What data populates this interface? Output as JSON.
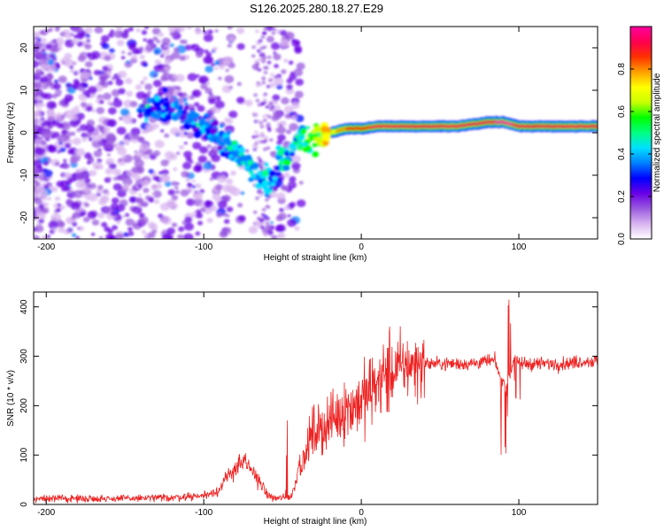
{
  "title": "S126.2025.280.18.27.E29",
  "chart_data": [
    {
      "type": "heatmap",
      "name": "spectrogram",
      "xlabel": "Height of straight line (km)",
      "ylabel": "Frequency (Hz)",
      "xlim": [
        -208,
        150
      ],
      "ylim": [
        -25,
        25
      ],
      "xticks": [
        -200,
        -100,
        0,
        100
      ],
      "yticks": [
        -20,
        -10,
        0,
        10,
        20
      ],
      "colorbar": {
        "label": "Normalized spectral amplitude",
        "range": [
          0,
          1
        ],
        "ticks": [
          "0.0",
          "0.2",
          "0.4",
          "0.6",
          "0.8"
        ],
        "colors": [
          "#ffffff",
          "#d8b4f0",
          "#9a5ae0",
          "#6a00e6",
          "#0000ff",
          "#0080ff",
          "#00e0ff",
          "#00ff80",
          "#00ff00",
          "#c8ff00",
          "#ffff00",
          "#ffa000",
          "#ff3000",
          "#ff0050",
          "#ff00a0"
        ]
      },
      "ridge": {
        "x": [
          -140,
          -120,
          -110,
          -100,
          -90,
          -80,
          -70,
          -60,
          -55,
          -50,
          -45,
          -40,
          -35,
          -30,
          -20,
          -10,
          0,
          10,
          20,
          40,
          60,
          80,
          90,
          100,
          120,
          150
        ],
        "freq": [
          5,
          6,
          4,
          2,
          -1,
          -4,
          -8,
          -11,
          -12,
          -5,
          -5,
          -2,
          -2,
          -1,
          0,
          1,
          1,
          1.5,
          1.5,
          1.5,
          1.5,
          2.5,
          2.5,
          1.5,
          1.5,
          1.5
        ],
        "amplitude": [
          0.3,
          0.35,
          0.3,
          0.35,
          0.35,
          0.4,
          0.4,
          0.45,
          0.3,
          0.5,
          0.45,
          0.45,
          0.5,
          0.6,
          0.7,
          0.8,
          0.85,
          0.88,
          0.9,
          0.9,
          0.9,
          0.92,
          0.95,
          0.92,
          0.92,
          0.9
        ]
      }
    },
    {
      "type": "line",
      "name": "snr",
      "color": "#ee2222",
      "xlabel": "Height of straight line (km)",
      "ylabel": "SNR (10 * v/v)",
      "xlim": [
        -208,
        150
      ],
      "ylim": [
        0,
        430
      ],
      "xticks": [
        -200,
        -100,
        0,
        100
      ],
      "yticks": [
        0,
        100,
        200,
        300,
        400
      ],
      "x": [
        -208,
        -150,
        -120,
        -100,
        -90,
        -85,
        -80,
        -75,
        -70,
        -65,
        -60,
        -55,
        -45,
        -42,
        -40,
        -36,
        -33,
        -30,
        -25,
        -20,
        -15,
        -10,
        -5,
        0,
        5,
        10,
        15,
        20,
        25,
        30,
        40,
        50,
        60,
        70,
        80,
        85,
        88,
        90,
        92,
        95,
        97,
        100,
        110,
        120,
        130,
        140,
        150
      ],
      "y": [
        12,
        12,
        14,
        18,
        30,
        55,
        75,
        85,
        70,
        50,
        20,
        12,
        15,
        40,
        80,
        90,
        130,
        150,
        150,
        170,
        180,
        195,
        200,
        210,
        225,
        245,
        260,
        270,
        278,
        282,
        285,
        285,
        285,
        285,
        290,
        290,
        260,
        250,
        240,
        270,
        300,
        285,
        285,
        285,
        285,
        290,
        290
      ]
    }
  ]
}
